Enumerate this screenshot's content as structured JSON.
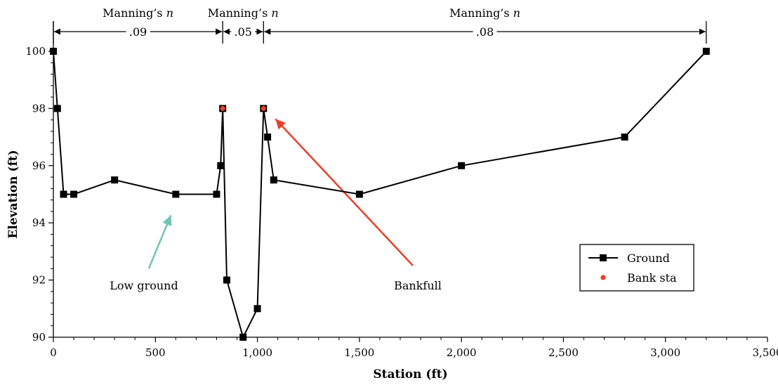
{
  "chart_data": {
    "type": "line",
    "xlabel": "Station (ft)",
    "ylabel": "Elevation (ft)",
    "xlim": [
      0,
      3500
    ],
    "ylim": [
      90,
      101
    ],
    "x_ticks": [
      0,
      500,
      1000,
      1500,
      2000,
      2500,
      3000,
      3500
    ],
    "x_tick_labels": [
      "0",
      "500",
      "1,000",
      "1,500",
      "2,000",
      "2,500",
      "3,000",
      "3,500"
    ],
    "y_ticks": [
      90,
      92,
      94,
      96,
      98,
      100
    ],
    "y_tick_labels": [
      "90",
      "92",
      "94",
      "96",
      "98",
      "100"
    ],
    "grid": false,
    "legend_position": "bottom-right",
    "series": [
      {
        "name": "Ground",
        "color": "#000000",
        "marker": "square",
        "x": [
          0,
          20,
          50,
          100,
          300,
          600,
          800,
          820,
          830,
          850,
          930,
          1000,
          1030,
          1050,
          1080,
          1500,
          2000,
          2800,
          3200
        ],
        "y": [
          100,
          98,
          95,
          95,
          95.5,
          95,
          95,
          96,
          98,
          92,
          90,
          91,
          98,
          97,
          95.5,
          95,
          96,
          97,
          100
        ]
      },
      {
        "name": "Bank sta",
        "color": "#e8402a",
        "marker": "circle",
        "x": [
          830,
          1030
        ],
        "y": [
          98,
          98
        ]
      }
    ],
    "manning_zones": [
      {
        "title_prefix": "Manning’s ",
        "title_italic": "n",
        "value": ".09",
        "x_start": 0,
        "x_end": 830
      },
      {
        "title_prefix": "Manning’s ",
        "title_italic": "n",
        "value": ".05",
        "x_start": 830,
        "x_end": 1030
      },
      {
        "title_prefix": "Manning’s ",
        "title_italic": "n",
        "value": ".08",
        "x_start": 1030,
        "x_end": 3200
      }
    ],
    "annotations": [
      {
        "text": "Low ground",
        "color": "#6ec6b0",
        "target_x": 600,
        "target_y": 95
      },
      {
        "text": "Bankfull",
        "color": "#e8402a",
        "target_x": 1030,
        "target_y": 98
      }
    ]
  }
}
